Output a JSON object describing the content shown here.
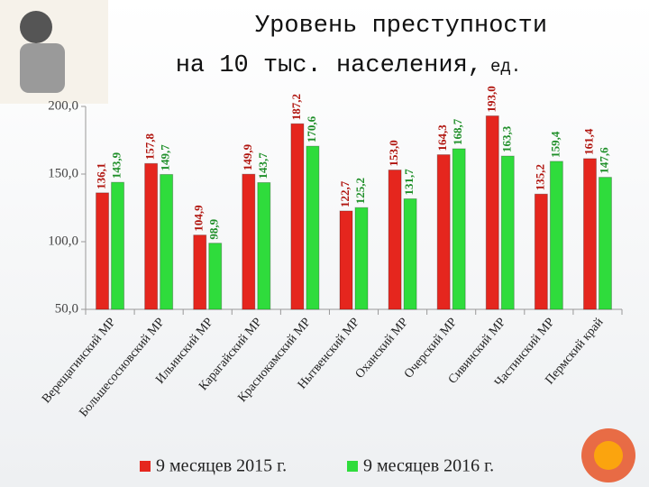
{
  "chart_data": {
    "type": "bar",
    "title": "Уровень преступности",
    "subtitle": "на 10 тыс. населения,",
    "unit": "ед.",
    "categories": [
      "Верещагинский МР",
      "Большесосновский МР",
      "Ильинский МР",
      "Карагайский МР",
      "Краснокамский МР",
      "Нытвенский МР",
      "Оханский МР",
      "Очерский МР",
      "Сивинский МР",
      "Частинский МР",
      "Пермский край"
    ],
    "series": [
      {
        "name": "9 месяцев 2015 г.",
        "color": "#e5261e",
        "values": [
          136.1,
          157.8,
          104.9,
          149.9,
          187.2,
          122.7,
          153.0,
          164.3,
          193.0,
          135.2,
          161.4
        ],
        "value_labels": [
          "136,1",
          "157,8",
          "104,9",
          "149,9",
          "187,2",
          "122,7",
          "153,0",
          "164,3",
          "193,0",
          "135,2",
          "161,4"
        ]
      },
      {
        "name": "9 месяцев 2016 г.",
        "color": "#2fdc3c",
        "values": [
          143.9,
          149.7,
          98.9,
          143.7,
          170.6,
          125.2,
          131.7,
          168.7,
          163.3,
          159.4,
          147.6
        ],
        "value_labels": [
          "143,9",
          "149,7",
          "98,9",
          "143,7",
          "170,6",
          "125,2",
          "131,7",
          "168,7",
          "163,3",
          "159,4",
          "147,6"
        ]
      }
    ],
    "ylim": [
      50,
      200
    ],
    "yticks": [
      {
        "value": 50,
        "label": "50,0"
      },
      {
        "value": 100,
        "label": "100,0"
      },
      {
        "value": 150,
        "label": "150,0"
      },
      {
        "value": 200,
        "label": "200,0"
      }
    ],
    "grid": false
  }
}
